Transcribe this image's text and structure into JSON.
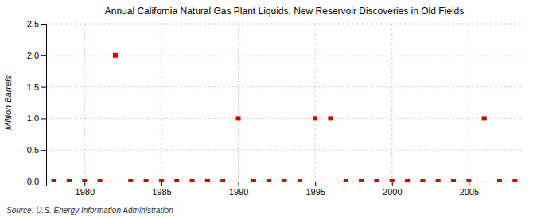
{
  "chart_data": {
    "type": "scatter",
    "title": "Annual California Natural Gas Plant Liquids,  New Reservoir Discoveries in Old Fields",
    "ylabel": "Million Barrels",
    "source": "Source: U.S. Energy Information Administration",
    "x": [
      1978,
      1979,
      1980,
      1981,
      1982,
      1983,
      1984,
      1985,
      1986,
      1987,
      1988,
      1989,
      1990,
      1991,
      1992,
      1993,
      1994,
      1995,
      1996,
      1997,
      1998,
      1999,
      2000,
      2001,
      2002,
      2003,
      2004,
      2005,
      2006,
      2007,
      2008
    ],
    "values": [
      0.0,
      0.0,
      0.0,
      0.0,
      2.0,
      0.0,
      0.0,
      0.0,
      0.0,
      0.0,
      0.0,
      0.0,
      1.0,
      0.0,
      0.0,
      0.0,
      0.0,
      1.0,
      1.0,
      0.0,
      0.0,
      0.0,
      0.0,
      0.0,
      0.0,
      0.0,
      0.0,
      0.0,
      1.0,
      0.0,
      0.0
    ],
    "color": "#cc0000",
    "marker": "square",
    "xlim": [
      1977.5,
      2008.5
    ],
    "ylim": [
      0.0,
      2.5
    ],
    "xticks": [
      1980,
      1985,
      1990,
      1995,
      2000,
      2005
    ],
    "yticks": [
      {
        "value": 0.0,
        "label": "0.0"
      },
      0.5,
      {
        "value": 1.0,
        "label": "1.0"
      },
      1.5,
      {
        "value": 2.0,
        "label": "2.0"
      },
      2.5
    ],
    "grid": true
  }
}
